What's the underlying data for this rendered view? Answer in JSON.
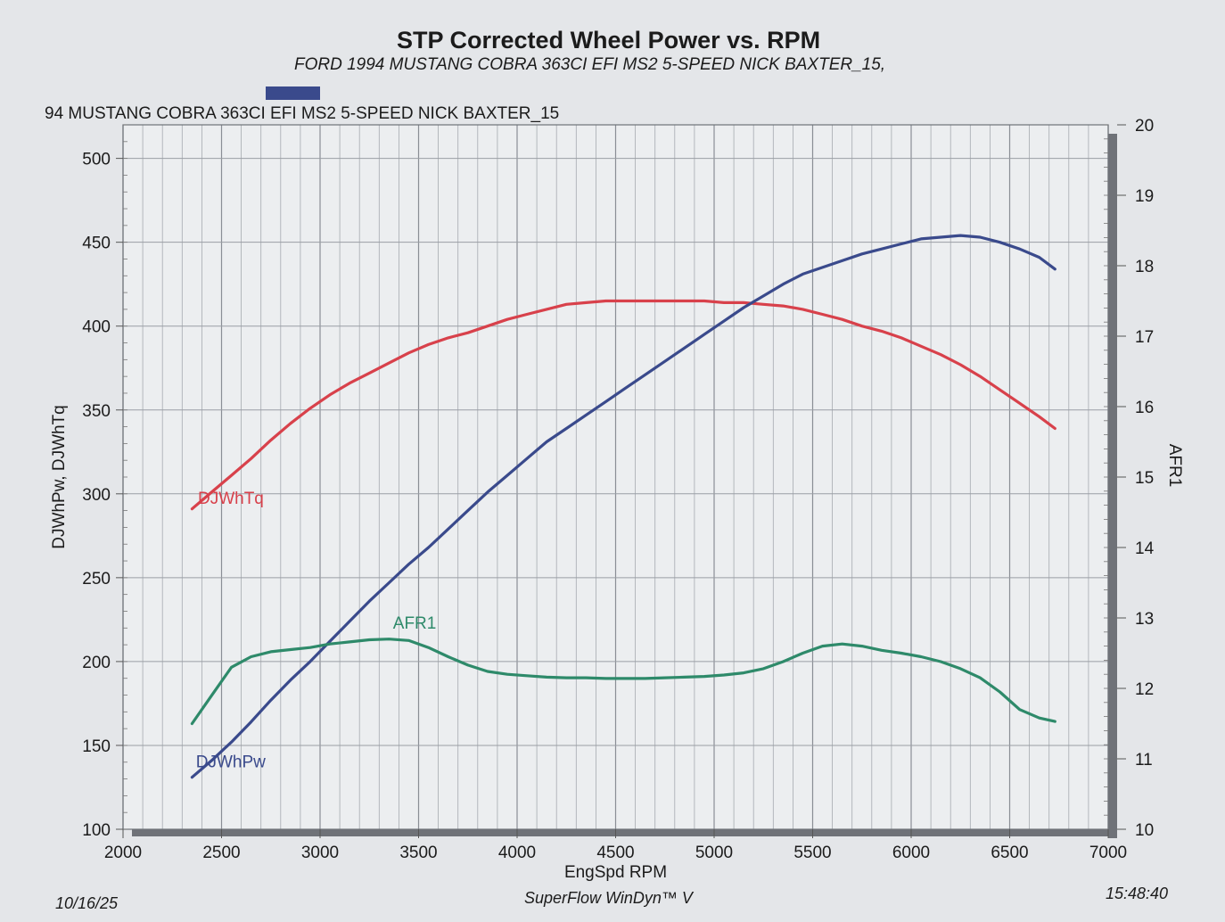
{
  "header": {
    "title": "STP Corrected Wheel Power vs. RPM",
    "subtitle": "FORD 1994 MUSTANG COBRA 363CI EFI MS2 5-SPEED NICK BAXTER_15,",
    "run_name": "94 MUSTANG COBRA 363CI EFI MS2 5-SPEED NICK BAXTER_15",
    "swatch_color": "#3a4a8c"
  },
  "footer": {
    "date": "10/16/25",
    "software": "SuperFlow WinDyn™ V",
    "time": "15:48:40"
  },
  "chart_data": {
    "type": "line",
    "xlabel": "EngSpd  RPM",
    "ylabel": "DJWhPw, DJWhTq",
    "y2label": "AFR1",
    "xlim": [
      2000,
      7000
    ],
    "ylim": [
      100,
      520
    ],
    "y2lim": [
      10,
      20
    ],
    "x_ticks": [
      2000,
      2500,
      3000,
      3500,
      4000,
      4500,
      5000,
      5500,
      6000,
      6500,
      7000
    ],
    "y_ticks": [
      100,
      150,
      200,
      250,
      300,
      350,
      400,
      450,
      500
    ],
    "y2_ticks": [
      10,
      11,
      12,
      13,
      14,
      15,
      16,
      17,
      18,
      19,
      20
    ],
    "grid": true,
    "series": [
      {
        "name": "DJWhTq",
        "axis": "left",
        "color": "#d8414b",
        "x": [
          2350,
          2450,
          2550,
          2650,
          2750,
          2850,
          2950,
          3050,
          3150,
          3250,
          3350,
          3450,
          3550,
          3650,
          3750,
          3850,
          3950,
          4050,
          4150,
          4250,
          4350,
          4450,
          4550,
          4650,
          4750,
          4850,
          4950,
          5050,
          5150,
          5250,
          5350,
          5450,
          5550,
          5650,
          5750,
          5850,
          5950,
          6050,
          6150,
          6250,
          6350,
          6450,
          6550,
          6650,
          6730
        ],
        "values": [
          291,
          301,
          311,
          321,
          332,
          342,
          351,
          359,
          366,
          372,
          378,
          384,
          389,
          393,
          396,
          400,
          404,
          407,
          410,
          413,
          414,
          415,
          415,
          415,
          415,
          415,
          415,
          414,
          414,
          413,
          412,
          410,
          407,
          404,
          400,
          397,
          393,
          388,
          383,
          377,
          370,
          362,
          354,
          346,
          339
        ]
      },
      {
        "name": "DJWhPw",
        "axis": "left",
        "color": "#3a4a8c",
        "x": [
          2350,
          2450,
          2550,
          2650,
          2750,
          2850,
          2950,
          3050,
          3150,
          3250,
          3350,
          3450,
          3550,
          3650,
          3750,
          3850,
          3950,
          4050,
          4150,
          4250,
          4350,
          4450,
          4550,
          4650,
          4750,
          4850,
          4950,
          5050,
          5150,
          5250,
          5350,
          5450,
          5550,
          5650,
          5750,
          5850,
          5950,
          6050,
          6150,
          6250,
          6350,
          6450,
          6550,
          6650,
          6730
        ],
        "values": [
          131,
          141,
          152,
          164,
          177,
          189,
          200,
          212,
          224,
          236,
          247,
          258,
          268,
          279,
          290,
          301,
          311,
          321,
          331,
          339,
          347,
          355,
          363,
          371,
          379,
          387,
          395,
          403,
          411,
          418,
          425,
          431,
          435,
          439,
          443,
          446,
          449,
          452,
          453,
          454,
          453,
          450,
          446,
          441,
          434
        ]
      },
      {
        "name": "AFR1",
        "axis": "right",
        "color": "#2e8a6a",
        "x": [
          2350,
          2450,
          2550,
          2650,
          2750,
          2850,
          2950,
          3050,
          3150,
          3250,
          3350,
          3450,
          3550,
          3650,
          3750,
          3850,
          3950,
          4050,
          4150,
          4250,
          4350,
          4450,
          4550,
          4650,
          4750,
          4850,
          4950,
          5050,
          5150,
          5250,
          5350,
          5450,
          5550,
          5650,
          5750,
          5850,
          5950,
          6050,
          6150,
          6250,
          6350,
          6450,
          6550,
          6650,
          6730
        ],
        "values": [
          11.5,
          11.9,
          12.3,
          12.45,
          12.52,
          12.55,
          12.58,
          12.63,
          12.66,
          12.69,
          12.7,
          12.68,
          12.58,
          12.45,
          12.33,
          12.24,
          12.2,
          12.18,
          12.16,
          12.15,
          12.15,
          12.14,
          12.14,
          12.14,
          12.15,
          12.16,
          12.17,
          12.19,
          12.22,
          12.28,
          12.38,
          12.5,
          12.6,
          12.63,
          12.6,
          12.54,
          12.5,
          12.45,
          12.38,
          12.28,
          12.15,
          11.95,
          11.7,
          11.58,
          11.53
        ]
      }
    ]
  }
}
